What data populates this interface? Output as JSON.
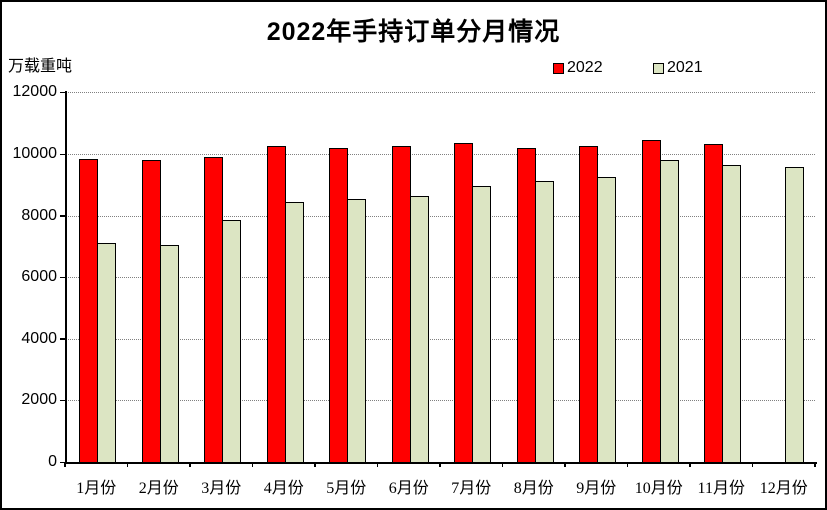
{
  "chart_data": {
    "type": "bar",
    "title": "2022年手持订单分月情况",
    "unit_label": "万载重吨",
    "categories": [
      "1月份",
      "2月份",
      "3月份",
      "4月份",
      "5月份",
      "6月份",
      "7月份",
      "8月份",
      "9月份",
      "10月份",
      "11月份",
      "12月份"
    ],
    "series": [
      {
        "name": "2022",
        "color": "#ff0000",
        "values": [
          9850,
          9790,
          9900,
          10250,
          10210,
          10270,
          10350,
          10210,
          10250,
          10450,
          10340,
          null
        ]
      },
      {
        "name": "2021",
        "color": "#dce5c3",
        "values": [
          7110,
          7050,
          7850,
          8440,
          8530,
          8650,
          8950,
          9130,
          9250,
          9800,
          9640,
          9580
        ]
      }
    ],
    "y_axis": {
      "min": 0,
      "max": 12000,
      "step": 2000,
      "tick_labels": [
        "0",
        "2000",
        "4000",
        "6000",
        "8000",
        "10000",
        "12000"
      ]
    },
    "grid": true,
    "legend_position": "top-right",
    "bar_border_color": "#000000",
    "gridline_color": "#808080"
  }
}
